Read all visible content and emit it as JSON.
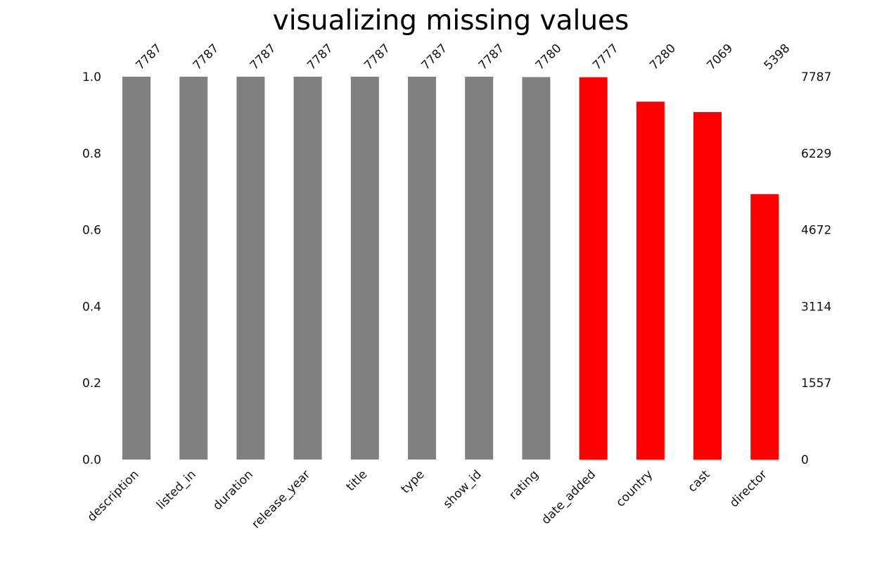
{
  "chart_data": {
    "type": "bar",
    "title": "visualizing missing values",
    "categories": [
      "description",
      "listed_in",
      "duration",
      "release_year",
      "title",
      "type",
      "show_id",
      "rating",
      "date_added",
      "country",
      "cast",
      "director"
    ],
    "values": [
      7787,
      7787,
      7787,
      7787,
      7787,
      7787,
      7787,
      7780,
      7777,
      7280,
      7069,
      5398
    ],
    "total": 7787,
    "left_axis": {
      "ticks": [
        "0.0",
        "0.2",
        "0.4",
        "0.6",
        "0.8",
        "1.0"
      ],
      "ylim": [
        0,
        1
      ]
    },
    "right_axis": {
      "ticks": [
        "0",
        "1557",
        "3114",
        "4672",
        "6229",
        "7787"
      ]
    },
    "bar_colors": [
      "gray",
      "gray",
      "gray",
      "gray",
      "gray",
      "gray",
      "gray",
      "gray",
      "red",
      "red",
      "red",
      "red"
    ],
    "colors": {
      "gray": "#808080",
      "red": "#ff0000"
    },
    "grid": false
  }
}
